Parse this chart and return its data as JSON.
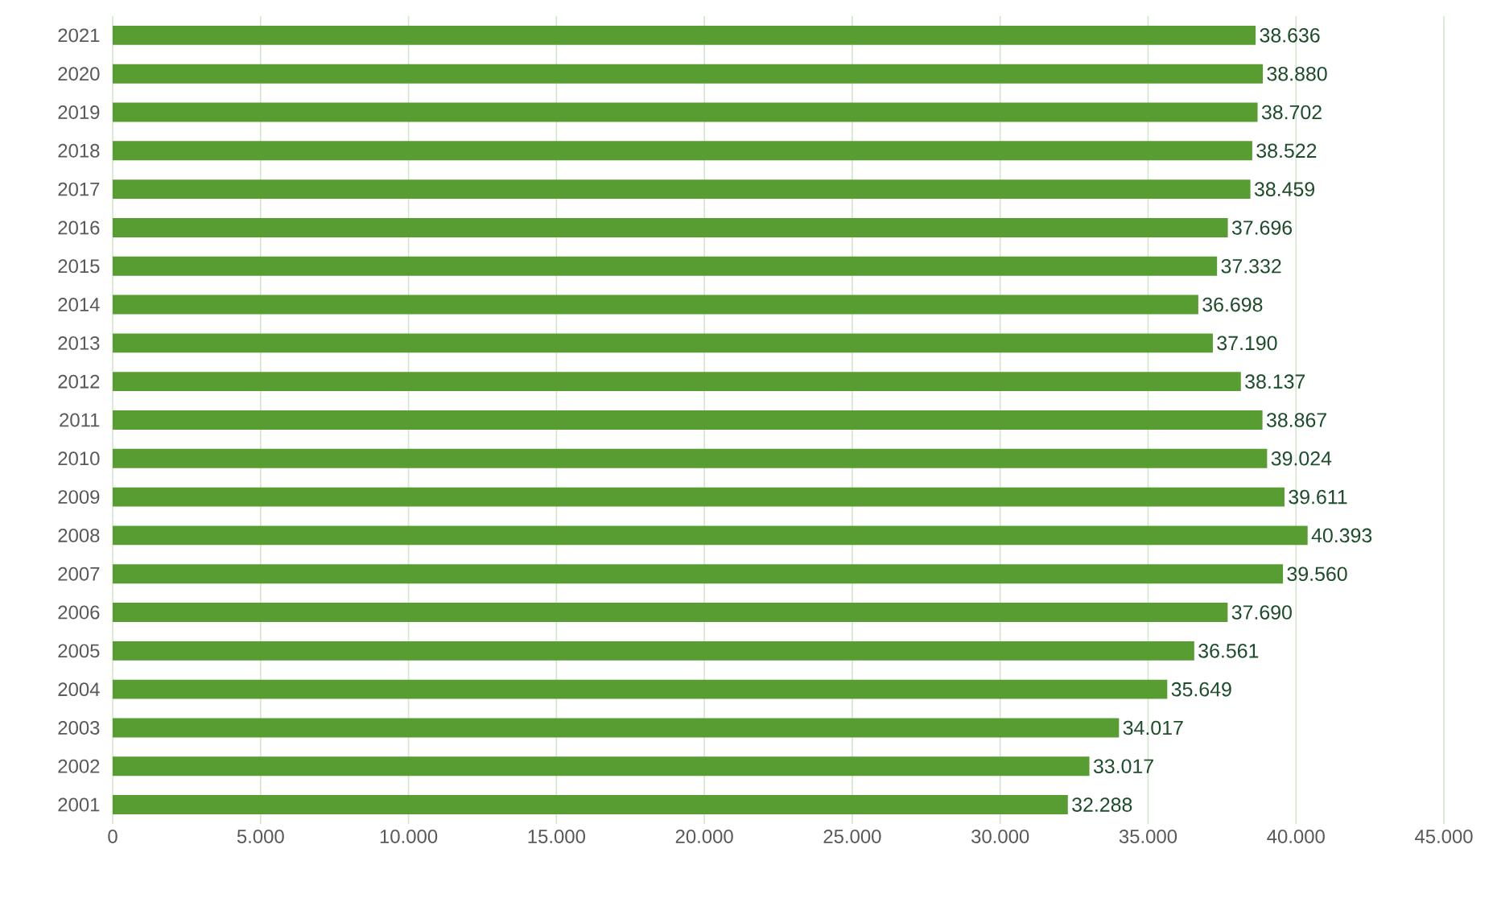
{
  "chart_data": {
    "type": "bar",
    "orientation": "horizontal",
    "categories": [
      "2021",
      "2020",
      "2019",
      "2018",
      "2017",
      "2016",
      "2015",
      "2014",
      "2013",
      "2012",
      "2011",
      "2010",
      "2009",
      "2008",
      "2007",
      "2006",
      "2005",
      "2004",
      "2003",
      "2002",
      "2001"
    ],
    "values": [
      38636,
      38880,
      38702,
      38522,
      38459,
      37696,
      37332,
      36698,
      37190,
      38137,
      38867,
      39024,
      39611,
      40393,
      39560,
      37690,
      36561,
      35649,
      34017,
      33017,
      32288
    ],
    "value_labels": [
      "38.636",
      "38.880",
      "38.702",
      "38.522",
      "38.459",
      "37.696",
      "37.332",
      "36.698",
      "37.190",
      "38.137",
      "38.867",
      "39.024",
      "39.611",
      "40.393",
      "39.560",
      "37.690",
      "36.561",
      "35.649",
      "34.017",
      "33.017",
      "32.288"
    ],
    "color": "#579d32",
    "xlim": [
      0,
      45000
    ],
    "xticks": [
      0,
      {
        "value": 5000,
        "label": "5.000"
      },
      {
        "value": 10000,
        "label": "10.000"
      },
      {
        "value": 15000,
        "label": "15.000"
      },
      {
        "value": 20000,
        "label": "20.000"
      },
      {
        "value": 25000,
        "label": "25.000"
      },
      {
        "value": 30000,
        "label": "30.000"
      },
      {
        "value": 35000,
        "label": "35.000"
      },
      {
        "value": 40000,
        "label": "40.000"
      },
      {
        "value": 45000,
        "label": "45.000"
      }
    ],
    "grid": "x"
  }
}
